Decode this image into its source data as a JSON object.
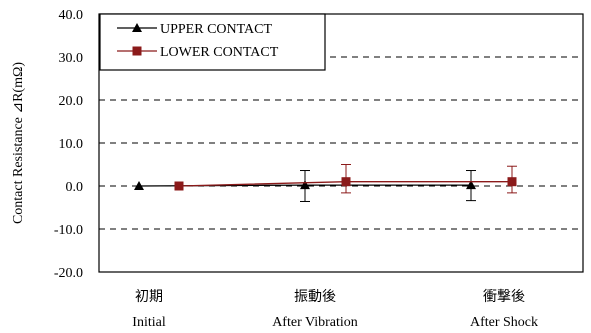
{
  "chart_data": {
    "type": "line",
    "ylabel": "Contact Resistance ⊿R(mΩ)",
    "ylim": [
      -20.0,
      40.0
    ],
    "yticks": [
      "40.0",
      "30.0",
      "20.0",
      "10.0",
      "0.0",
      "-10.0",
      "-20.0"
    ],
    "grid": "horizontal dashed",
    "legend_position": "top-left",
    "categories": [
      {
        "jp": "初期",
        "en": "Initial"
      },
      {
        "jp": "振動後",
        "en": "After Vibration"
      },
      {
        "jp": "衝撃後",
        "en": "After Shock"
      }
    ],
    "series": [
      {
        "name": "UPPER CONTACT",
        "color": "#000000",
        "marker": "triangle",
        "values": [
          0.0,
          0.2,
          0.2
        ],
        "error_high": [
          0.0,
          3.6,
          3.6
        ],
        "error_low": [
          0.0,
          -3.6,
          -3.4
        ]
      },
      {
        "name": "LOWER CONTACT",
        "color": "#8b1a1a",
        "marker": "square",
        "values": [
          0.0,
          1.0,
          1.0
        ],
        "error_high": [
          0.0,
          5.0,
          4.6
        ],
        "error_low": [
          0.0,
          -1.6,
          -1.6
        ]
      }
    ]
  }
}
